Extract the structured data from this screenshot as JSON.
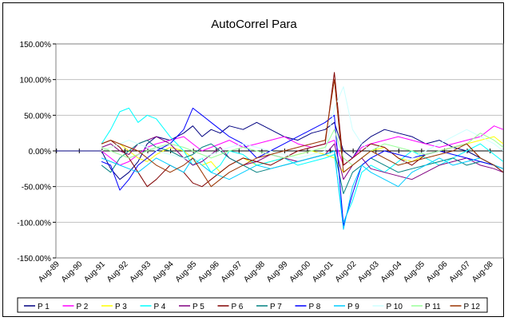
{
  "chart_data": {
    "type": "line",
    "title": "AutoCorrel Para",
    "xlabel": "",
    "ylabel": "",
    "ylim": [
      -150,
      150
    ],
    "ytick_labels": [
      "150.00%",
      "100.00%",
      "50.00%",
      "0.00%",
      "-50.00%",
      "-100.00%",
      "-150.00%"
    ],
    "ytick_values": [
      150,
      100,
      50,
      0,
      -50,
      -100,
      -150
    ],
    "xtick_labels": [
      "Aug-89",
      "Aug-90",
      "Aug-91",
      "Aug-92",
      "Aug-93",
      "Aug-94",
      "Aug-95",
      "Aug-96",
      "Aug-97",
      "Aug-98",
      "Aug-99",
      "Aug-00",
      "Aug-01",
      "Aug-02",
      "Aug-03",
      "Aug-04",
      "Aug-05",
      "Aug-06",
      "Aug-07",
      "Aug-08"
    ],
    "x_range_years": [
      1989.6,
      2009.2
    ],
    "grid": "horizontal",
    "legend_position": "bottom",
    "series": [
      {
        "name": "P1",
        "color": "#000080",
        "x": [
          1989.6,
          1991.6,
          1992.0,
          1992.4,
          1992.8,
          1993.2,
          1993.6,
          1994.0,
          1994.6,
          1995.2,
          1995.6,
          1996.0,
          1996.4,
          1996.8,
          1997.2,
          1997.8,
          1998.4,
          1999.0,
          1999.6,
          2000.2,
          2000.8,
          2001.4,
          2001.8,
          2002.2,
          2002.6,
          2003.0,
          2003.4,
          2004.0,
          2004.6,
          2005.2,
          2005.8,
          2006.4,
          2007.0,
          2007.6,
          2008.2,
          2008.8,
          2009.2
        ],
        "values": [
          0,
          0,
          -25,
          -40,
          -30,
          -15,
          10,
          20,
          15,
          25,
          35,
          20,
          30,
          25,
          35,
          30,
          40,
          30,
          20,
          15,
          25,
          30,
          40,
          0,
          -10,
          10,
          20,
          30,
          25,
          20,
          10,
          15,
          5,
          0,
          -10,
          -20,
          -30
        ]
      },
      {
        "name": "P2",
        "color": "#ff00ff",
        "x": [
          1991.6,
          1992.0,
          1992.4,
          1992.8,
          1993.2,
          1993.6,
          1994.0,
          1994.6,
          1995.2,
          1995.6,
          1996.0,
          1996.4,
          1996.8,
          1997.2,
          1997.8,
          1998.4,
          1999.0,
          1999.6,
          2000.2,
          2000.8,
          2001.4,
          2001.8,
          2002.2,
          2002.6,
          2003.0,
          2003.4,
          2004.0,
          2004.6,
          2005.2,
          2005.8,
          2006.4,
          2007.0,
          2007.6,
          2008.2,
          2008.8,
          2009.2
        ],
        "values": [
          0,
          -10,
          -20,
          -15,
          -5,
          5,
          10,
          15,
          20,
          10,
          0,
          5,
          10,
          15,
          5,
          10,
          15,
          20,
          10,
          5,
          10,
          15,
          -20,
          -10,
          5,
          10,
          15,
          20,
          15,
          10,
          5,
          10,
          15,
          20,
          35,
          30
        ]
      },
      {
        "name": "P3",
        "color": "#ffff00",
        "x": [
          1991.6,
          1992.0,
          1992.4,
          1992.8,
          1993.2,
          1993.6,
          1994.0,
          1994.6,
          1995.2,
          1995.6,
          1996.0,
          1996.4,
          1996.8,
          1997.2,
          1997.8,
          1998.4,
          1999.0,
          1999.6,
          2000.2,
          2000.8,
          2001.4,
          2001.8,
          2002.2,
          2002.6,
          2003.0,
          2003.4,
          2004.0,
          2004.6,
          2005.2,
          2005.8,
          2006.4,
          2007.0,
          2007.6,
          2008.2,
          2008.8,
          2009.2
        ],
        "values": [
          0,
          5,
          10,
          0,
          -10,
          -15,
          -5,
          5,
          0,
          -10,
          -20,
          -15,
          -30,
          -20,
          -10,
          -20,
          -15,
          -10,
          -5,
          0,
          -5,
          -10,
          -30,
          -20,
          -10,
          0,
          5,
          -10,
          -15,
          -5,
          0,
          5,
          10,
          15,
          20,
          10
        ]
      },
      {
        "name": "P4",
        "color": "#00ffff",
        "x": [
          1991.6,
          1992.0,
          1992.4,
          1992.8,
          1993.2,
          1993.6,
          1994.0,
          1994.6,
          1995.2,
          1995.6,
          1996.0,
          1996.4,
          1996.8,
          1997.2,
          1997.8,
          1998.4,
          1999.0,
          1999.6,
          2000.2,
          2000.8,
          2001.4,
          2001.8,
          2002.2,
          2002.6,
          2003.0,
          2003.4,
          2004.0,
          2004.6,
          2005.2,
          2005.8,
          2006.4,
          2007.0,
          2007.6,
          2008.2,
          2008.8,
          2009.2
        ],
        "values": [
          10,
          30,
          55,
          60,
          40,
          50,
          45,
          20,
          0,
          -20,
          -10,
          -30,
          -20,
          0,
          -5,
          -20,
          -15,
          -10,
          -20,
          -15,
          -10,
          -5,
          -100,
          -70,
          -30,
          -20,
          -30,
          -15,
          0,
          -10,
          -20,
          -10,
          0,
          10,
          -5,
          -15
        ]
      },
      {
        "name": "P5",
        "color": "#800080",
        "x": [
          1991.6,
          1992.0,
          1992.4,
          1992.8,
          1993.2,
          1993.6,
          1994.0,
          1994.6,
          1995.2,
          1995.6,
          1996.0,
          1996.4,
          1996.8,
          1997.2,
          1997.8,
          1998.4,
          1999.0,
          1999.6,
          2000.2,
          2000.8,
          2001.4,
          2001.8,
          2002.2,
          2002.6,
          2003.0,
          2003.4,
          2004.0,
          2004.6,
          2005.2,
          2005.8,
          2006.4,
          2007.0,
          2007.6,
          2008.2,
          2008.8,
          2009.2
        ],
        "values": [
          5,
          10,
          0,
          -5,
          10,
          15,
          20,
          10,
          -10,
          -20,
          -15,
          -5,
          5,
          -10,
          -20,
          -15,
          -5,
          -10,
          -15,
          -10,
          -5,
          10,
          -40,
          -20,
          -10,
          -25,
          -30,
          -35,
          -40,
          -30,
          -20,
          -15,
          -10,
          -20,
          -25,
          -30
        ]
      },
      {
        "name": "P6",
        "color": "#800000",
        "x": [
          1991.6,
          1992.0,
          1992.4,
          1992.8,
          1993.2,
          1993.6,
          1994.0,
          1994.6,
          1995.2,
          1995.6,
          1996.0,
          1996.4,
          1996.8,
          1997.2,
          1997.8,
          1998.4,
          1999.0,
          1999.6,
          2000.2,
          2000.8,
          2001.4,
          2001.8,
          2002.2,
          2002.6,
          2003.0,
          2003.4,
          2004.0,
          2004.6,
          2005.2,
          2005.8,
          2006.4,
          2007.0,
          2007.6,
          2008.2,
          2008.8,
          2009.2
        ],
        "values": [
          10,
          15,
          5,
          -10,
          -30,
          -50,
          -40,
          -20,
          -30,
          -45,
          -50,
          -40,
          -30,
          -20,
          -10,
          -15,
          -20,
          -10,
          0,
          5,
          10,
          110,
          -20,
          -10,
          0,
          10,
          5,
          -10,
          -20,
          -5,
          0,
          5,
          10,
          -10,
          -20,
          -25
        ]
      },
      {
        "name": "P7",
        "color": "#008080",
        "x": [
          1991.6,
          1992.0,
          1992.4,
          1992.8,
          1993.2,
          1993.6,
          1994.0,
          1994.6,
          1995.2,
          1995.6,
          1996.0,
          1996.4,
          1996.8,
          1997.2,
          1997.8,
          1998.4,
          1999.0,
          1999.6,
          2000.2,
          2000.8,
          2001.4,
          2001.8,
          2002.2,
          2002.6,
          2003.0,
          2003.4,
          2004.0,
          2004.6,
          2005.2,
          2005.8,
          2006.4,
          2007.0,
          2007.6,
          2008.2,
          2008.8,
          2009.2
        ],
        "values": [
          -20,
          -30,
          -10,
          0,
          10,
          15,
          5,
          0,
          -10,
          -5,
          5,
          10,
          0,
          -10,
          -20,
          -30,
          -25,
          -20,
          -15,
          -10,
          -5,
          0,
          -60,
          -30,
          -20,
          -10,
          -20,
          -30,
          -25,
          -20,
          -15,
          -10,
          -20,
          -15,
          -20,
          -25
        ]
      },
      {
        "name": "P8",
        "color": "#0000ff",
        "x": [
          1991.6,
          1992.0,
          1992.4,
          1992.8,
          1993.2,
          1993.6,
          1994.0,
          1994.6,
          1995.2,
          1995.6,
          1996.0,
          1996.4,
          1996.8,
          1997.2,
          1997.8,
          1998.4,
          1999.0,
          1999.6,
          2000.2,
          2000.8,
          2001.4,
          2001.8,
          2002.2,
          2002.6,
          2003.0,
          2003.4,
          2004.0,
          2004.6,
          2005.2,
          2005.8,
          2006.4,
          2007.0,
          2007.6,
          2008.2,
          2008.8,
          2009.2
        ],
        "values": [
          -15,
          -20,
          -55,
          -40,
          -20,
          -10,
          0,
          10,
          30,
          60,
          50,
          40,
          30,
          20,
          10,
          -10,
          0,
          10,
          20,
          30,
          40,
          50,
          -105,
          -60,
          -20,
          -10,
          0,
          -5,
          -10,
          -5,
          0,
          -5,
          -10,
          -15,
          -20,
          -30
        ]
      },
      {
        "name": "P9",
        "color": "#00ccff",
        "x": [
          1991.6,
          1992.0,
          1992.4,
          1992.8,
          1993.2,
          1993.6,
          1994.0,
          1994.6,
          1995.2,
          1995.6,
          1996.0,
          1996.4,
          1996.8,
          1997.2,
          1997.8,
          1998.4,
          1999.0,
          1999.6,
          2000.2,
          2000.8,
          2001.4,
          2001.8,
          2002.2,
          2002.6,
          2003.0,
          2003.4,
          2004.0,
          2004.6,
          2005.2,
          2005.8,
          2006.4,
          2007.0,
          2007.6,
          2008.2,
          2008.8,
          2009.2
        ],
        "values": [
          -10,
          -15,
          -20,
          -25,
          -30,
          -20,
          -10,
          -20,
          -30,
          -10,
          -20,
          -30,
          -35,
          -40,
          -30,
          -20,
          -25,
          -20,
          -15,
          -10,
          -5,
          0,
          -110,
          -50,
          -20,
          -30,
          -40,
          -50,
          -30,
          -20,
          -10,
          -20,
          -15,
          -10,
          -20,
          -25
        ]
      },
      {
        "name": "P10",
        "color": "#ccffff",
        "x": [
          1991.6,
          1992.0,
          1992.4,
          1992.8,
          1993.2,
          1993.6,
          1994.0,
          1994.6,
          1995.2,
          1995.6,
          1996.0,
          1996.4,
          1996.8,
          1997.2,
          1997.8,
          1998.4,
          1999.0,
          1999.6,
          2000.2,
          2000.8,
          2001.4,
          2001.8,
          2002.2,
          2002.6,
          2003.0,
          2003.4,
          2004.0,
          2004.6,
          2005.2,
          2005.8,
          2006.4,
          2007.0,
          2007.6,
          2008.2,
          2008.8,
          2009.2
        ],
        "values": [
          0,
          5,
          10,
          15,
          10,
          5,
          0,
          -5,
          -10,
          -15,
          -10,
          -5,
          0,
          5,
          10,
          5,
          0,
          -5,
          -10,
          -5,
          0,
          60,
          90,
          30,
          10,
          0,
          -10,
          -20,
          -10,
          0,
          10,
          20,
          30,
          20,
          10,
          0
        ]
      },
      {
        "name": "P11",
        "color": "#99ff99",
        "x": [
          1991.6,
          1992.0,
          1992.4,
          1992.8,
          1993.2,
          1993.6,
          1994.0,
          1994.6,
          1995.2,
          1995.6,
          1996.0,
          1996.4,
          1996.8,
          1997.2,
          1997.8,
          1998.4,
          1999.0,
          1999.6,
          2000.2,
          2000.8,
          2001.4,
          2001.8,
          2002.2,
          2002.6,
          2003.0,
          2003.4,
          2004.0,
          2004.6,
          2005.2,
          2005.8,
          2006.4,
          2007.0,
          2007.6,
          2008.2,
          2008.8,
          2009.2
        ],
        "values": [
          5,
          0,
          -5,
          -10,
          -5,
          0,
          5,
          10,
          5,
          0,
          -5,
          -10,
          -5,
          0,
          5,
          0,
          -5,
          -10,
          -5,
          0,
          5,
          30,
          -10,
          -20,
          -10,
          0,
          10,
          5,
          0,
          -5,
          0,
          5,
          10,
          25,
          15,
          5
        ]
      },
      {
        "name": "P12",
        "color": "#993300",
        "x": [
          1991.6,
          1992.0,
          1992.4,
          1992.8,
          1993.2,
          1993.6,
          1994.0,
          1994.6,
          1995.2,
          1995.6,
          1996.0,
          1996.4,
          1996.8,
          1997.2,
          1997.8,
          1998.4,
          1999.0,
          1999.6,
          2000.2,
          2000.8,
          2001.4,
          2001.8,
          2002.2,
          2002.6,
          2003.0,
          2003.4,
          2004.0,
          2004.6,
          2005.2,
          2005.8,
          2006.4,
          2007.0,
          2007.6,
          2008.2,
          2008.8,
          2009.2
        ],
        "values": [
          10,
          15,
          10,
          5,
          0,
          -10,
          -20,
          -30,
          -20,
          -10,
          -30,
          -50,
          -40,
          -30,
          -20,
          -10,
          -5,
          0,
          5,
          10,
          15,
          100,
          -30,
          -20,
          -10,
          0,
          -10,
          -20,
          -15,
          -10,
          -5,
          0,
          10,
          -10,
          -20,
          -30
        ]
      }
    ]
  }
}
